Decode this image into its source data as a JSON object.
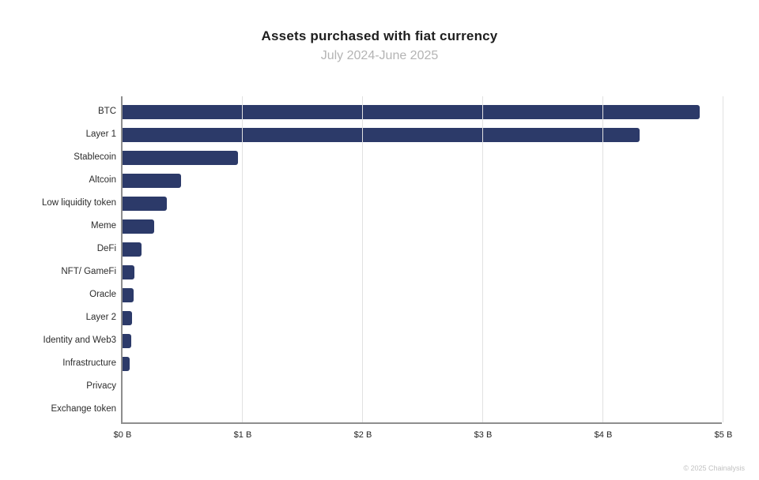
{
  "header": {
    "title": "Assets purchased with fiat currency",
    "subtitle": "July 2024-June 2025"
  },
  "footer": {
    "copyright": "© 2025 Chainalysis"
  },
  "chart_data": {
    "type": "bar",
    "orientation": "horizontal",
    "title": "Assets purchased with fiat currency",
    "subtitle": "July 2024-June 2025",
    "categories": [
      "BTC",
      "Layer 1",
      "Stablecoin",
      "Altcoin",
      "Low liquidity token",
      "Meme",
      "DeFi",
      "NFT/ GameFi",
      "Oracle",
      "Layer 2",
      "Identity and Web3",
      "Infrastructure",
      "Privacy",
      "Exchange token"
    ],
    "values": [
      4.8,
      4.3,
      0.96,
      0.49,
      0.37,
      0.26,
      0.16,
      0.1,
      0.09,
      0.08,
      0.07,
      0.06,
      0,
      0
    ],
    "value_unit": "billion USD",
    "xlabel": "",
    "ylabel": "",
    "xlim": [
      0,
      5
    ],
    "x_ticks": [
      "$0 B",
      "$1 B",
      "$2 B",
      "$3 B",
      "$4 B",
      "$5 B"
    ],
    "x_tick_values": [
      0,
      1,
      2,
      3,
      4,
      5
    ],
    "grid": true,
    "legend": false,
    "bar_color": "#2c3a69",
    "grid_color": "#e1e1e1",
    "axis_color": "#8e8e8e"
  }
}
